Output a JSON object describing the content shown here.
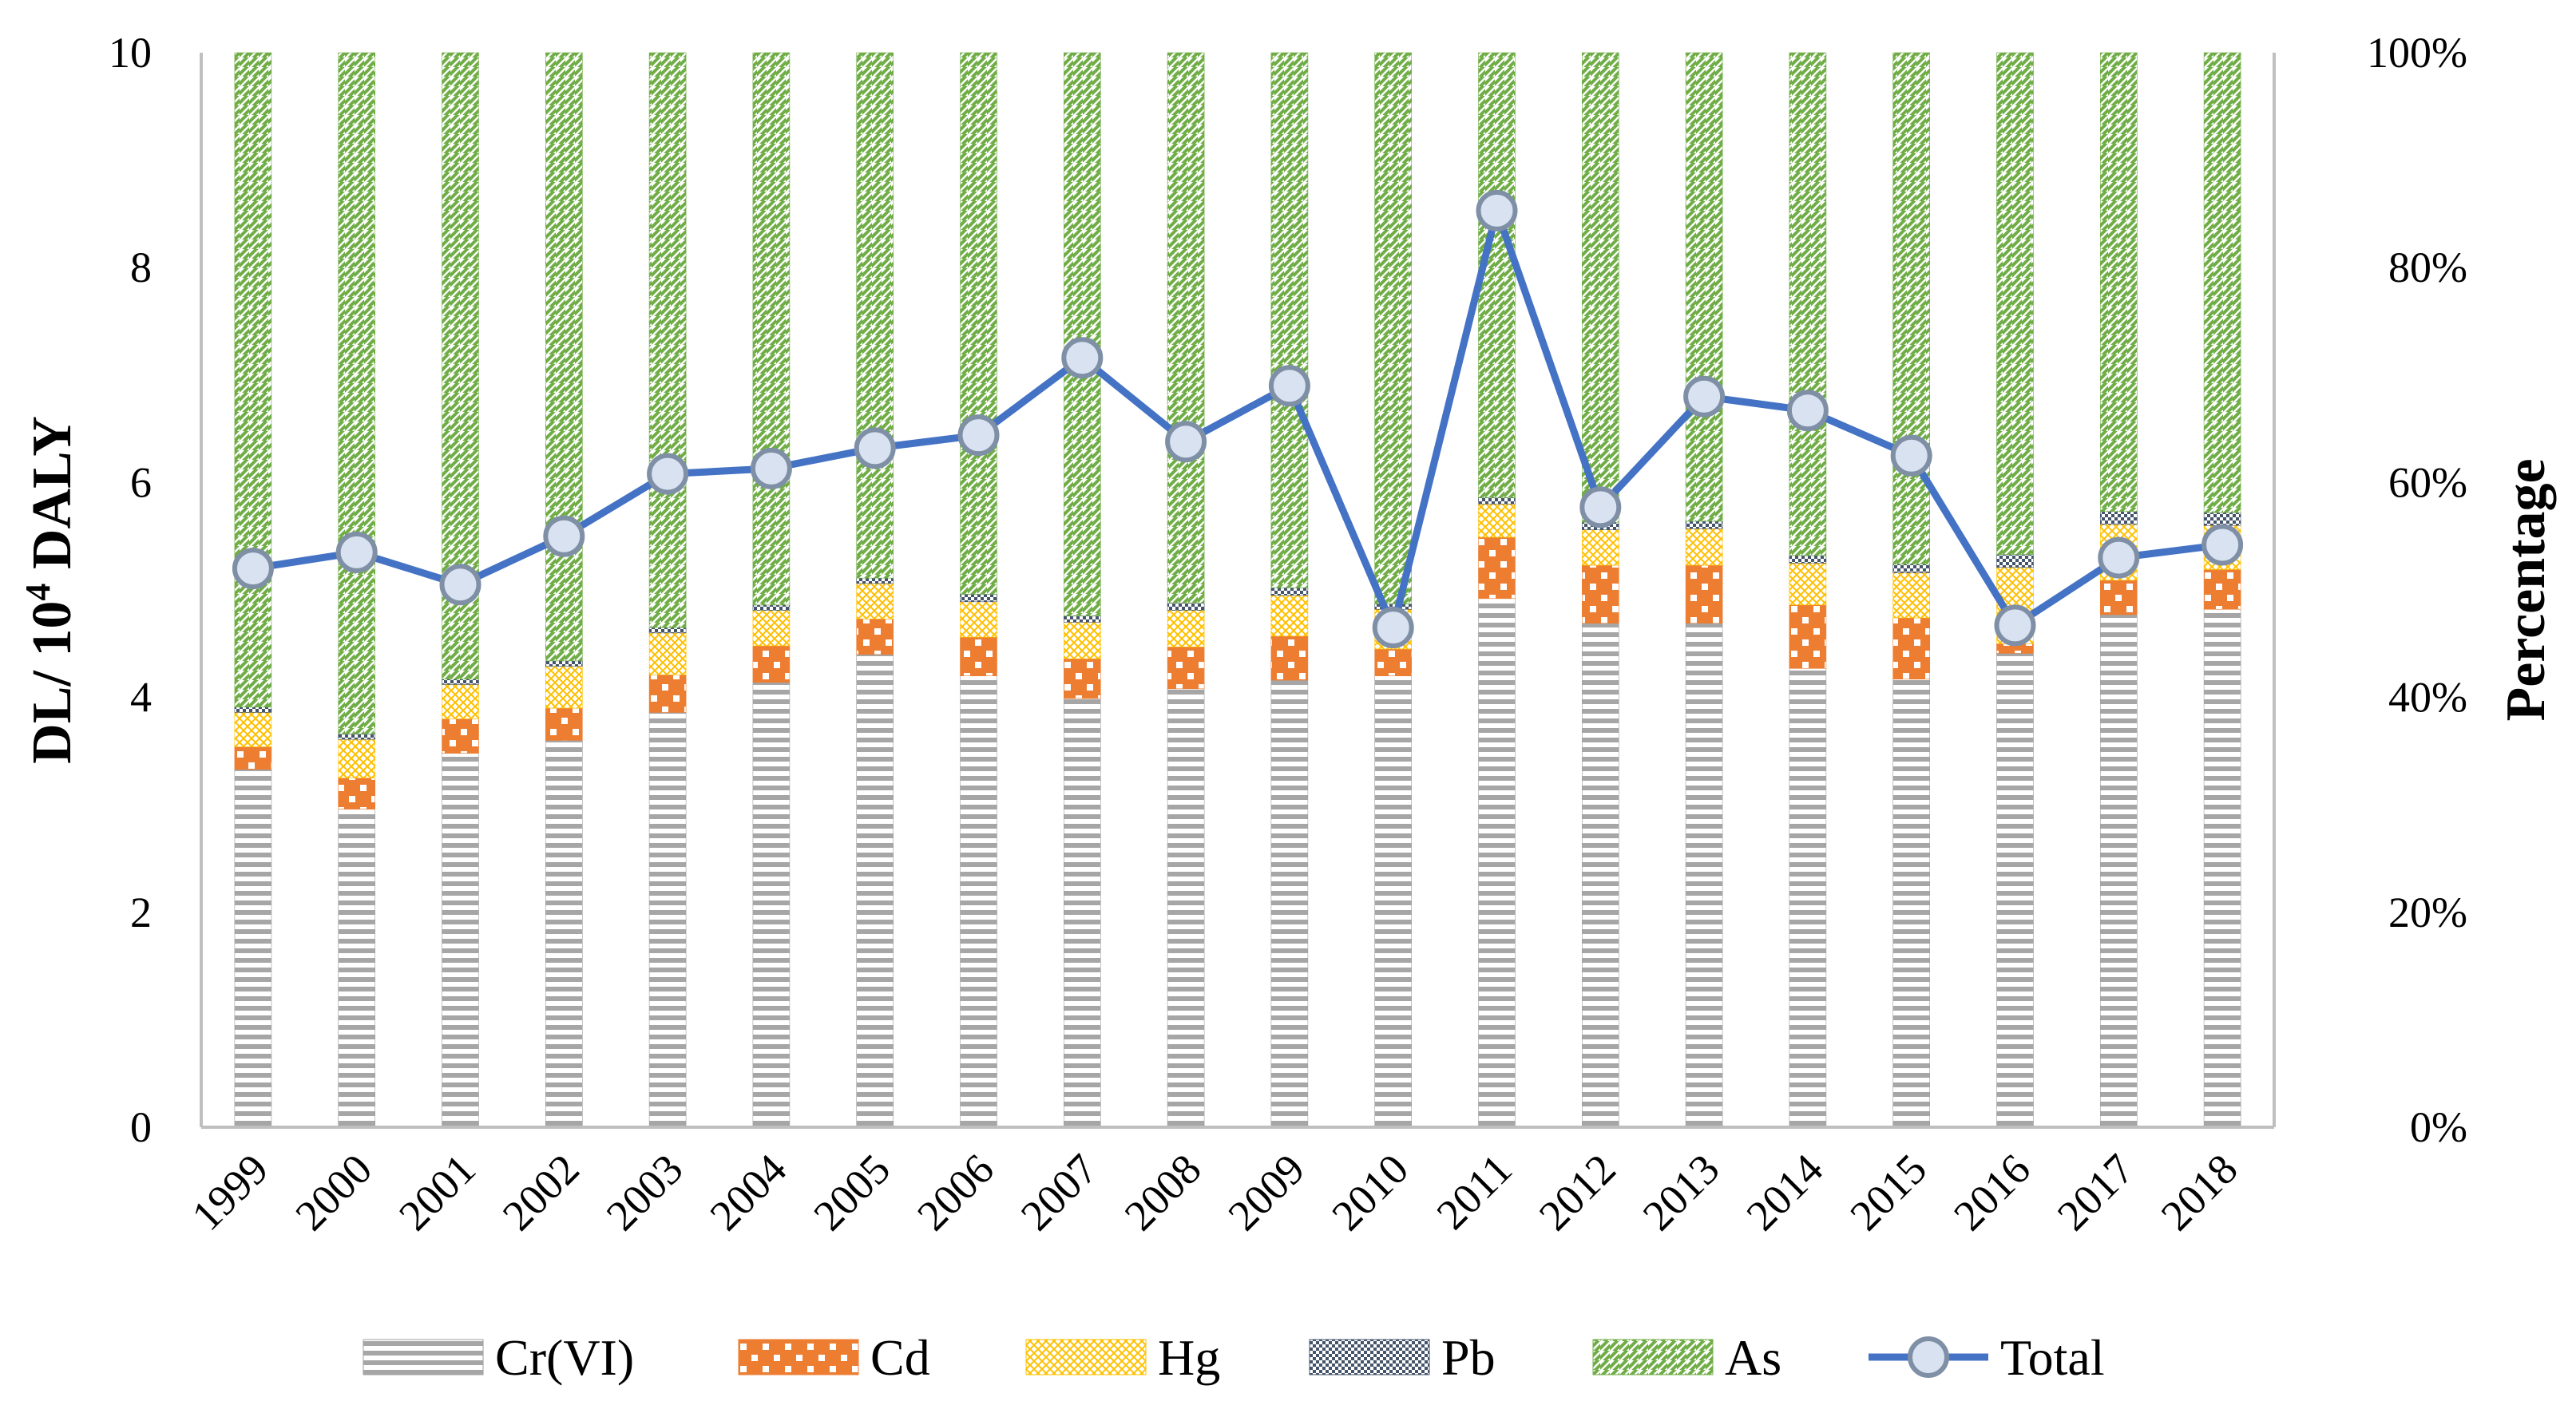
{
  "chart_data": {
    "type": "bar",
    "subtype": "stacked-percentage-with-line",
    "categories": [
      "1999",
      "2000",
      "2001",
      "2002",
      "2003",
      "2004",
      "2005",
      "2006",
      "2007",
      "2008",
      "2009",
      "2010",
      "2011",
      "2012",
      "2013",
      "2014",
      "2015",
      "2016",
      "2017",
      "2018"
    ],
    "series": [
      {
        "name": "Cr(VI)",
        "kind": "bar",
        "color": "#9e9e9e",
        "values": [
          33.3,
          29.6,
          34.8,
          36.0,
          38.6,
          41.4,
          44.0,
          42.0,
          39.9,
          40.8,
          41.6,
          42.0,
          49.2,
          46.9,
          46.9,
          42.7,
          41.7,
          44.1,
          47.7,
          48.2
        ]
      },
      {
        "name": "Cd",
        "kind": "bar",
        "color": "#ed7d31",
        "values": [
          2.1,
          2.9,
          3.2,
          3.0,
          3.5,
          3.4,
          3.3,
          3.6,
          3.7,
          3.9,
          4.1,
          2.5,
          5.7,
          5.4,
          5.4,
          5.9,
          5.7,
          0.9,
          3.2,
          3.7
        ]
      },
      {
        "name": "Hg",
        "kind": "bar",
        "color": "#ffc000",
        "values": [
          3.2,
          3.6,
          3.2,
          3.9,
          3.9,
          3.3,
          3.3,
          3.3,
          3.4,
          3.4,
          3.8,
          3.7,
          3.1,
          3.3,
          3.4,
          3.9,
          4.2,
          7.1,
          5.2,
          4.1
        ]
      },
      {
        "name": "Pb",
        "kind": "bar",
        "color": "#44546a",
        "values": [
          0.5,
          0.5,
          0.5,
          0.5,
          0.5,
          0.5,
          0.5,
          0.7,
          0.6,
          0.7,
          0.7,
          0.5,
          0.6,
          0.7,
          0.7,
          0.7,
          0.8,
          1.2,
          1.2,
          1.2
        ]
      },
      {
        "name": "As",
        "kind": "bar",
        "color": "#70ad47",
        "values": [
          60.9,
          63.4,
          58.3,
          56.6,
          53.5,
          51.4,
          48.9,
          50.4,
          52.4,
          51.2,
          49.8,
          51.3,
          41.4,
          43.7,
          43.6,
          46.8,
          47.6,
          46.7,
          42.7,
          42.8
        ]
      },
      {
        "name": "Total",
        "kind": "line",
        "color": "#4472c4",
        "values": [
          5.2,
          5.35,
          5.05,
          5.5,
          6.08,
          6.13,
          6.32,
          6.44,
          7.16,
          6.38,
          6.9,
          4.65,
          8.53,
          5.77,
          6.8,
          6.67,
          6.25,
          4.67,
          5.3,
          5.42
        ]
      }
    ],
    "left_axis": {
      "label_prefix": "DL/ 10",
      "label_sup": "4",
      "label_suffix": " DALY",
      "ylim": [
        0,
        10
      ],
      "ticks": [
        "0",
        "2",
        "4",
        "6",
        "8",
        "10"
      ]
    },
    "right_axis": {
      "label": "Percentage",
      "ylim": [
        0,
        100
      ],
      "ticks": [
        "0%",
        "20%",
        "40%",
        "60%",
        "80%",
        "100%"
      ]
    },
    "legend": {
      "placement": "bottom",
      "entries": [
        "Cr(VI)",
        "Cd",
        "Hg",
        "Pb",
        "As",
        "Total"
      ]
    }
  }
}
